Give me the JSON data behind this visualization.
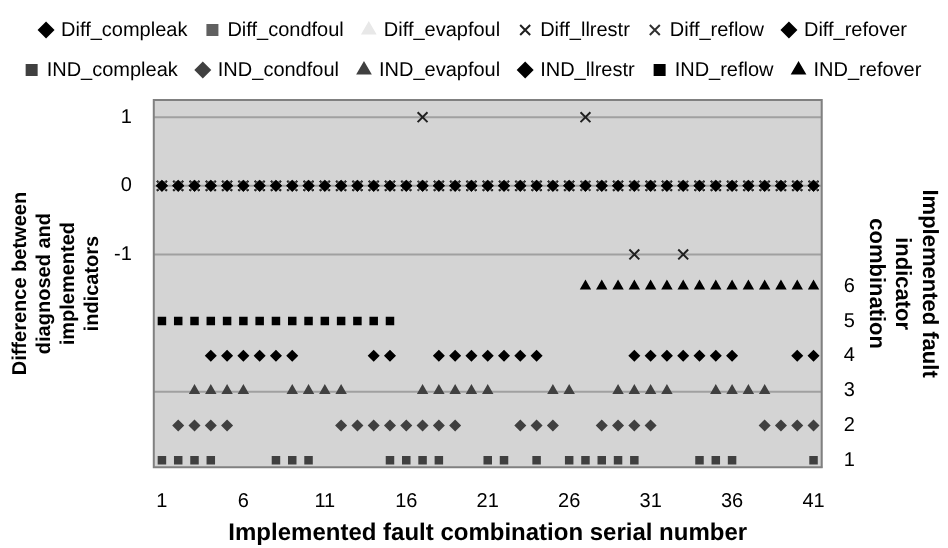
{
  "chart_data": {
    "type": "scatter",
    "xlabel": "Implemented fault combination serial number",
    "ylabel": "Difference between diagnosed and implemented indicators",
    "y2label": "Implemented fault indicator combination",
    "xlim": [
      0.5,
      41.5
    ],
    "xticks": [
      1,
      6,
      11,
      16,
      21,
      26,
      31,
      36,
      41
    ],
    "ylim": [
      -4.1,
      1.25
    ],
    "yticks": [
      {
        "value": -3,
        "label": null
      },
      -1,
      0,
      1
    ],
    "y2lim": [
      0.8,
      11.35
    ],
    "y2ticks": [
      1,
      2,
      3,
      4,
      5,
      6
    ],
    "grid": "y",
    "legend": "top",
    "series": [
      {
        "name": "Diff_compleak",
        "color": "#000000",
        "marker": "diamond",
        "x": [
          1,
          2,
          3,
          4,
          5,
          6,
          7,
          8,
          9,
          10,
          11,
          12,
          13,
          14,
          15,
          16,
          17,
          18,
          19,
          20,
          21,
          22,
          23,
          24,
          25,
          26,
          27,
          28,
          29,
          30,
          31,
          32,
          33,
          34,
          35,
          36,
          37,
          38,
          39,
          40,
          41
        ],
        "values": [
          0,
          0,
          0,
          0,
          0,
          0,
          0,
          0,
          0,
          0,
          0,
          0,
          0,
          0,
          0,
          0,
          0,
          0,
          0,
          0,
          0,
          0,
          0,
          0,
          0,
          0,
          0,
          0,
          0,
          0,
          0,
          0,
          0,
          0,
          0,
          0,
          0,
          0,
          0,
          0,
          0
        ]
      },
      {
        "name": "Diff_condfoul",
        "color": "#606060",
        "marker": "square",
        "x": [
          1,
          2,
          3,
          4,
          5,
          6,
          7,
          8,
          9,
          10,
          11,
          12,
          13,
          14,
          15,
          16,
          17,
          18,
          19,
          20,
          21,
          22,
          23,
          24,
          25,
          26,
          27,
          28,
          29,
          30,
          31,
          32,
          33,
          34,
          35,
          36,
          37,
          38,
          39,
          40,
          41
        ],
        "values": [
          0,
          0,
          0,
          0,
          0,
          0,
          0,
          0,
          0,
          0,
          0,
          0,
          0,
          0,
          0,
          0,
          0,
          0,
          0,
          0,
          0,
          0,
          0,
          0,
          0,
          0,
          0,
          0,
          0,
          0,
          0,
          0,
          0,
          0,
          0,
          0,
          0,
          0,
          0,
          0,
          0
        ]
      },
      {
        "name": "Diff_evapfoul",
        "color": "#e8e8e8",
        "marker": "triangle",
        "x": [
          1,
          2,
          3,
          4,
          5,
          6,
          7,
          8,
          9,
          10,
          11,
          12,
          13,
          14,
          15,
          16,
          17,
          18,
          19,
          20,
          21,
          22,
          23,
          24,
          25,
          26,
          27,
          28,
          29,
          30,
          31,
          32,
          33,
          34,
          35,
          36,
          37,
          38,
          39,
          40,
          41
        ],
        "values": [
          0,
          0,
          0,
          0,
          0,
          0,
          0,
          0,
          0,
          0,
          0,
          0,
          0,
          0,
          0,
          0,
          0,
          0,
          0,
          0,
          0,
          0,
          0,
          0,
          0,
          0,
          0,
          0,
          0,
          0,
          0,
          0,
          0,
          0,
          0,
          0,
          0,
          0,
          0,
          0,
          0
        ]
      },
      {
        "name": "Diff_llrestr",
        "color": "#202020",
        "marker": "cross",
        "x": [
          1,
          2,
          3,
          4,
          5,
          6,
          7,
          8,
          9,
          10,
          11,
          12,
          13,
          14,
          15,
          16,
          17,
          18,
          19,
          20,
          21,
          22,
          23,
          24,
          25,
          26,
          27,
          28,
          29,
          30,
          31,
          32,
          33,
          34,
          35,
          36,
          37,
          38,
          39,
          40,
          41
        ],
        "values": [
          0,
          0,
          0,
          0,
          0,
          0,
          0,
          0,
          0,
          0,
          0,
          0,
          0,
          0,
          0,
          0,
          1,
          0,
          0,
          0,
          0,
          0,
          0,
          0,
          0,
          0,
          1,
          0,
          0,
          -1,
          0,
          0,
          -1,
          0,
          0,
          0,
          0,
          0,
          0,
          0,
          0
        ]
      },
      {
        "name": "Diff_reflow",
        "color": "#303030",
        "marker": "cross",
        "x": [
          1,
          2,
          3,
          4,
          5,
          6,
          7,
          8,
          9,
          10,
          11,
          12,
          13,
          14,
          15,
          16,
          17,
          18,
          19,
          20,
          21,
          22,
          23,
          24,
          25,
          26,
          27,
          28,
          29,
          30,
          31,
          32,
          33,
          34,
          35,
          36,
          37,
          38,
          39,
          40,
          41
        ],
        "values": [
          0,
          0,
          0,
          0,
          0,
          0,
          0,
          0,
          0,
          0,
          0,
          0,
          0,
          0,
          0,
          0,
          0,
          0,
          0,
          0,
          0,
          0,
          0,
          0,
          0,
          0,
          0,
          0,
          0,
          0,
          0,
          0,
          0,
          0,
          0,
          0,
          0,
          0,
          0,
          0,
          0
        ]
      },
      {
        "name": "Diff_refover",
        "color": "#000000",
        "marker": "diamond",
        "x": [
          1,
          2,
          3,
          4,
          5,
          6,
          7,
          8,
          9,
          10,
          11,
          12,
          13,
          14,
          15,
          16,
          17,
          18,
          19,
          20,
          21,
          22,
          23,
          24,
          25,
          26,
          27,
          28,
          29,
          30,
          31,
          32,
          33,
          34,
          35,
          36,
          37,
          38,
          39,
          40,
          41
        ],
        "values": [
          0,
          0,
          0,
          0,
          0,
          0,
          0,
          0,
          0,
          0,
          0,
          0,
          0,
          0,
          0,
          0,
          0,
          0,
          0,
          0,
          0,
          0,
          0,
          0,
          0,
          0,
          0,
          0,
          0,
          0,
          0,
          0,
          0,
          0,
          0,
          0,
          0,
          0,
          0,
          0,
          0
        ]
      },
      {
        "name": "IND_compleak",
        "color": "#404040",
        "marker": "square",
        "axis": "y2",
        "x": [
          1,
          2,
          3,
          4,
          8,
          9,
          10,
          15,
          16,
          17,
          18,
          21,
          22,
          24,
          26,
          27,
          28,
          29,
          30,
          34,
          35,
          36,
          41
        ],
        "values": [
          1,
          1,
          1,
          1,
          1,
          1,
          1,
          1,
          1,
          1,
          1,
          1,
          1,
          1,
          1,
          1,
          1,
          1,
          1,
          1,
          1,
          1,
          1
        ]
      },
      {
        "name": "IND_condfoul",
        "color": "#404040",
        "marker": "diamond",
        "axis": "y2",
        "x": [
          2,
          3,
          4,
          5,
          12,
          13,
          14,
          15,
          16,
          17,
          18,
          19,
          23,
          24,
          25,
          28,
          29,
          30,
          31,
          38,
          39,
          40,
          41
        ],
        "values": [
          2,
          2,
          2,
          2,
          2,
          2,
          2,
          2,
          2,
          2,
          2,
          2,
          2,
          2,
          2,
          2,
          2,
          2,
          2,
          2,
          2,
          2,
          2
        ]
      },
      {
        "name": "IND_evapfoul",
        "color": "#404040",
        "marker": "triangle",
        "axis": "y2",
        "x": [
          3,
          4,
          5,
          6,
          9,
          10,
          11,
          12,
          17,
          18,
          19,
          20,
          21,
          25,
          26,
          29,
          30,
          31,
          32,
          35,
          36,
          37,
          38
        ],
        "values": [
          3,
          3,
          3,
          3,
          3,
          3,
          3,
          3,
          3,
          3,
          3,
          3,
          3,
          3,
          3,
          3,
          3,
          3,
          3,
          3,
          3,
          3,
          3
        ]
      },
      {
        "name": "IND_llrestr",
        "color": "#000000",
        "marker": "diamond",
        "axis": "y2",
        "x": [
          4,
          5,
          6,
          7,
          8,
          9,
          14,
          15,
          18,
          19,
          20,
          21,
          22,
          23,
          24,
          30,
          31,
          32,
          33,
          34,
          35,
          36,
          40,
          41
        ],
        "values": [
          4,
          4,
          4,
          4,
          4,
          4,
          4,
          4,
          4,
          4,
          4,
          4,
          4,
          4,
          4,
          4,
          4,
          4,
          4,
          4,
          4,
          4,
          4,
          4
        ]
      },
      {
        "name": "IND_reflow",
        "color": "#000000",
        "marker": "square",
        "axis": "y2",
        "x": [
          1,
          2,
          3,
          4,
          5,
          6,
          7,
          8,
          9,
          10,
          11,
          12,
          13,
          14,
          15
        ],
        "values": [
          5,
          5,
          5,
          5,
          5,
          5,
          5,
          5,
          5,
          5,
          5,
          5,
          5,
          5,
          5
        ]
      },
      {
        "name": "IND_refover",
        "color": "#000000",
        "marker": "triangle",
        "axis": "y2",
        "x": [
          27,
          28,
          29,
          30,
          31,
          32,
          33,
          34,
          35,
          36,
          37,
          38,
          39,
          40,
          41
        ],
        "values": [
          6,
          6,
          6,
          6,
          6,
          6,
          6,
          6,
          6,
          6,
          6,
          6,
          6,
          6,
          6
        ]
      }
    ]
  }
}
